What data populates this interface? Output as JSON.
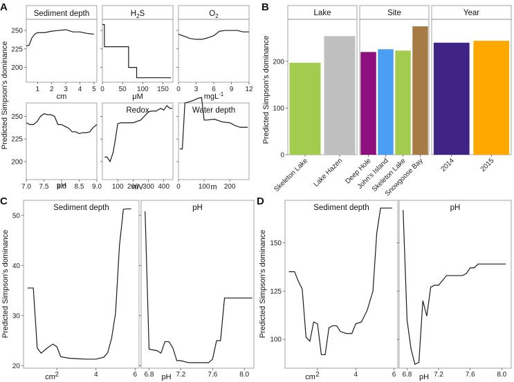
{
  "colors": {
    "green": "#a3cb4e",
    "grey": "#bfbfbf",
    "purple": "#8e0f7e",
    "blue": "#4a9ef4",
    "brown": "#a77c44",
    "indigo": "#3f2486",
    "orange": "#ffa800"
  },
  "panel_letters": {
    "A": "A",
    "B": "B",
    "C": "C",
    "D": "D"
  },
  "chart_data": [
    {
      "panel": "A",
      "type": "line",
      "ylabel": "Predicted Simpson's dominance",
      "ylim": [
        180,
        265
      ],
      "yticks": [
        200,
        225,
        250
      ],
      "facets": [
        {
          "title": "Sediment depth",
          "xlabel": "cm",
          "xlim": [
            0.2,
            5.2
          ],
          "xticks": [
            1,
            2,
            3,
            4,
            5
          ],
          "x": [
            0.2,
            0.4,
            0.6,
            0.8,
            1.0,
            1.5,
            2.0,
            2.5,
            3.0,
            3.5,
            4.0,
            4.5,
            5.0
          ],
          "y": [
            229,
            230,
            240,
            245,
            247,
            247,
            249,
            250,
            251,
            248,
            248,
            246,
            245
          ]
        },
        {
          "title": "H2S",
          "xlabel": "μM",
          "xlim": [
            0,
            175
          ],
          "xticks": [
            0,
            50,
            100,
            150
          ],
          "x": [
            0,
            5,
            5,
            50,
            50,
            65,
            65,
            85,
            85,
            100,
            100,
            170
          ],
          "y": [
            258,
            258,
            228,
            228,
            228,
            228,
            200,
            200,
            186,
            186,
            186,
            186
          ]
        },
        {
          "title": "O2",
          "xlabel": "mgL-1",
          "xlim": [
            0,
            12
          ],
          "xticks": [
            0,
            3,
            6,
            9,
            12
          ],
          "x": [
            0,
            1,
            2,
            3,
            4,
            5,
            6,
            7,
            8,
            9,
            10,
            11,
            12
          ],
          "y": [
            245,
            242,
            239,
            238,
            238,
            240,
            243,
            249,
            250,
            250,
            250,
            248,
            248
          ]
        },
        {
          "title": "",
          "xlabel": "pH",
          "xlim": [
            7.0,
            9.0
          ],
          "xticks": [
            7.0,
            7.5,
            8.0,
            8.5,
            9.0
          ],
          "x": [
            7.0,
            7.1,
            7.2,
            7.3,
            7.4,
            7.5,
            7.6,
            7.7,
            7.8,
            7.9,
            8.0,
            8.1,
            8.2,
            8.3,
            8.4,
            8.5,
            8.6,
            8.7,
            8.8,
            8.9,
            9.0
          ],
          "y": [
            243,
            241,
            241,
            244,
            250,
            253,
            252,
            252,
            250,
            241,
            241,
            239,
            237,
            233,
            233,
            231,
            232,
            232,
            233,
            238,
            241
          ]
        },
        {
          "title": "Redox",
          "xlabel": "mV",
          "xlim": [
            0,
            460
          ],
          "xticks": [
            100,
            200,
            300,
            400
          ],
          "x": [
            15,
            30,
            50,
            70,
            85,
            100,
            120,
            150,
            200,
            250,
            300,
            320,
            350,
            380,
            400,
            420,
            440,
            455
          ],
          "y": [
            205,
            205,
            200,
            210,
            225,
            242,
            243,
            243,
            243,
            246,
            255,
            256,
            256,
            259,
            257,
            262,
            259,
            259
          ]
        },
        {
          "title": "Water depth",
          "xlabel": "m",
          "xlim": [
            0,
            275
          ],
          "xticks": [
            0,
            100,
            200
          ],
          "x": [
            5,
            15,
            25,
            40,
            60,
            75,
            90,
            100,
            110,
            140,
            170,
            200,
            220,
            240,
            270
          ],
          "y": [
            214,
            214,
            265,
            266,
            268,
            270,
            271,
            246,
            246,
            247,
            244,
            243,
            240,
            238,
            238
          ]
        }
      ]
    },
    {
      "panel": "B",
      "type": "bar",
      "ylabel": "Predicted Simpson's dominance",
      "ylim": [
        0,
        290
      ],
      "yticks": [
        0,
        100,
        200
      ],
      "facets": [
        {
          "title": "Lake",
          "categories": [
            "Skeleton Lake",
            "Lake Hazen"
          ],
          "values": [
            197,
            254
          ],
          "colors": [
            "green",
            "grey"
          ]
        },
        {
          "title": "Site",
          "categories": [
            "Deep Hole",
            "John's Island",
            "Skeleton Lake",
            "Snowgoose Bay"
          ],
          "values": [
            220,
            226,
            223,
            275
          ],
          "colors": [
            "purple",
            "blue",
            "green",
            "brown"
          ]
        },
        {
          "title": "Year",
          "categories": [
            "2014",
            "2015"
          ],
          "values": [
            240,
            244
          ],
          "colors": [
            "indigo",
            "orange"
          ]
        }
      ]
    },
    {
      "panel": "C",
      "type": "line",
      "ylabel": "Predicted Simpson's dominance",
      "ylim": [
        19.5,
        53
      ],
      "yticks": [
        20,
        30,
        40,
        50
      ],
      "facets": [
        {
          "title": "Sediment depth",
          "xlabel": "cm",
          "xlim": [
            0.3,
            6.2
          ],
          "xticks": [
            2,
            4,
            6
          ],
          "x": [
            0.5,
            0.8,
            1.0,
            1.2,
            1.5,
            1.8,
            2.0,
            2.2,
            2.6,
            3.0,
            3.5,
            4.0,
            4.4,
            4.6,
            4.8,
            5.0,
            5.2,
            5.4,
            5.6,
            5.8
          ],
          "y": [
            35.5,
            35.5,
            23.5,
            22.5,
            23.5,
            24.3,
            23.8,
            21.8,
            21.5,
            21.4,
            21.3,
            21.3,
            21.7,
            22.6,
            25.5,
            30.5,
            44,
            51.2,
            51.3,
            51.3
          ]
        },
        {
          "title": "pH",
          "xlabel": "pH",
          "xlim": [
            6.7,
            8.12
          ],
          "xticks": [
            6.8,
            7.2,
            7.6,
            8.0
          ],
          "x": [
            6.75,
            6.8,
            6.9,
            6.95,
            7.0,
            7.05,
            7.1,
            7.15,
            7.2,
            7.3,
            7.4,
            7.5,
            7.55,
            7.6,
            7.65,
            7.7,
            7.75,
            7.8,
            8.1
          ],
          "y": [
            50.8,
            23.3,
            23.0,
            22.5,
            24.8,
            24.8,
            23.5,
            21.0,
            21.0,
            20.6,
            20.6,
            20.6,
            20.6,
            21.3,
            25.0,
            25.0,
            33.5,
            33.5,
            33.5
          ]
        }
      ]
    },
    {
      "panel": "D",
      "type": "line",
      "ylabel": "Predicted Simpson's dominance",
      "ylim": [
        85,
        172
      ],
      "yticks": [
        100,
        125,
        150
      ],
      "facets": [
        {
          "title": "Sediment depth",
          "xlabel": "cm",
          "xlim": [
            0.3,
            6.2
          ],
          "xticks": [
            2,
            4,
            6
          ],
          "x": [
            0.5,
            0.8,
            1.0,
            1.2,
            1.4,
            1.6,
            1.8,
            2.0,
            2.2,
            2.4,
            2.6,
            2.8,
            3.0,
            3.2,
            3.5,
            3.8,
            4.0,
            4.3,
            4.6,
            4.9,
            5.1,
            5.3,
            5.5,
            5.7,
            5.9
          ],
          "y": [
            135,
            135,
            130,
            126,
            101,
            99,
            109,
            108,
            92,
            92,
            106,
            107,
            107,
            104,
            103,
            103,
            108,
            109,
            115,
            125,
            155,
            168,
            168,
            168,
            168
          ]
        },
        {
          "title": "pH",
          "xlabel": "pH",
          "xlim": [
            6.7,
            8.12
          ],
          "xticks": [
            6.8,
            7.2,
            7.6,
            8.0
          ],
          "x": [
            6.75,
            6.8,
            6.85,
            6.9,
            6.95,
            7.0,
            7.05,
            7.1,
            7.15,
            7.2,
            7.3,
            7.4,
            7.5,
            7.55,
            7.6,
            7.65,
            7.7,
            7.75,
            8.05
          ],
          "y": [
            167,
            110,
            95,
            87,
            88,
            120,
            112,
            127,
            128,
            128,
            133,
            133,
            133,
            134,
            137,
            137,
            139,
            139,
            139
          ]
        }
      ]
    }
  ]
}
